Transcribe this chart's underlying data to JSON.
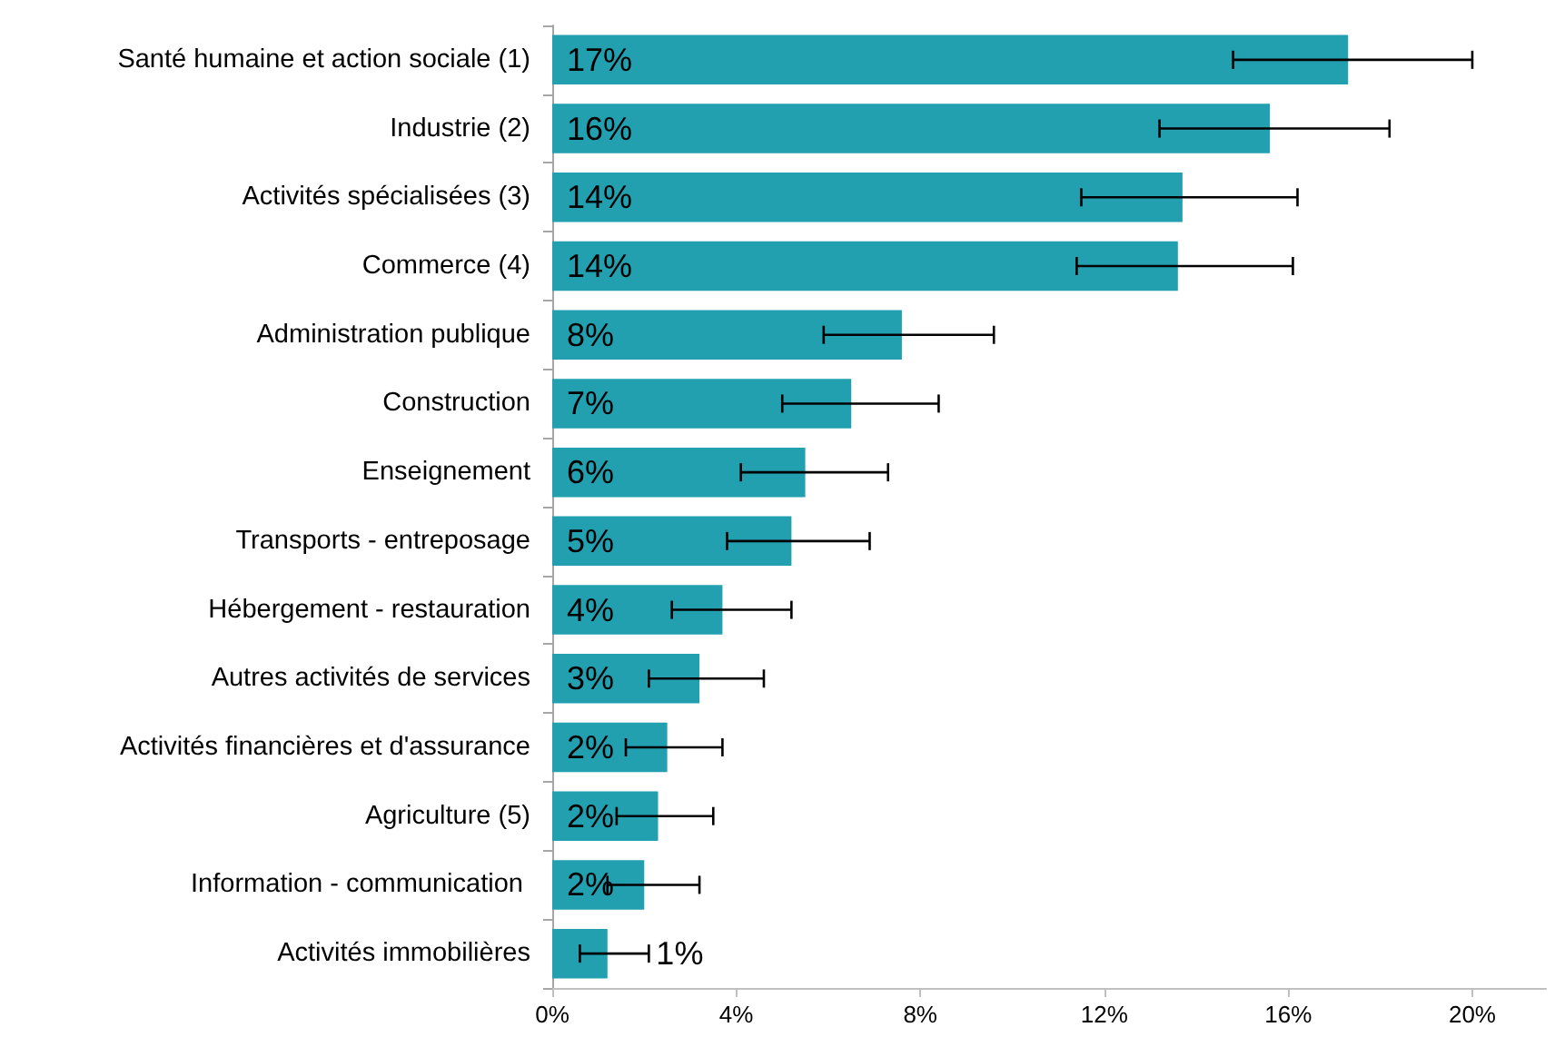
{
  "chart_data": {
    "type": "bar",
    "orientation": "horizontal",
    "color": "#22a0b0",
    "categories": [
      "Santé humaine et action sociale (1)",
      "Industrie (2)",
      "Activités spécialisées (3)",
      "Commerce (4)",
      "Administration publique",
      "Construction",
      "Enseignement",
      "Transports - entreposage",
      "Hébergement - restauration",
      "Autres activités de services",
      "Activités financières et d'assurance",
      "Agriculture (5)",
      "Information - communication ",
      "Activités immobilières"
    ],
    "values": [
      17.3,
      15.6,
      13.7,
      13.6,
      7.6,
      6.5,
      5.5,
      5.2,
      3.7,
      3.2,
      2.5,
      2.3,
      2.0,
      1.2
    ],
    "errors": [
      [
        14.8,
        20.0
      ],
      [
        13.2,
        18.2
      ],
      [
        11.5,
        16.2
      ],
      [
        11.4,
        16.1
      ],
      [
        5.9,
        9.6
      ],
      [
        5.0,
        8.4
      ],
      [
        4.1,
        7.3
      ],
      [
        3.8,
        6.9
      ],
      [
        2.6,
        5.2
      ],
      [
        2.1,
        4.6
      ],
      [
        1.6,
        3.7
      ],
      [
        1.4,
        3.5
      ],
      [
        1.2,
        3.2
      ],
      [
        0.6,
        2.1
      ]
    ],
    "value_labels": [
      "17%",
      "16%",
      "14%",
      "14%",
      "8%",
      "7%",
      "6%",
      "5%",
      "4%",
      "3%",
      "2%",
      "2%",
      "2%",
      "1%"
    ],
    "xlim": [
      0,
      21.6
    ],
    "xticks": [
      {
        "value": 0,
        "label": "0%"
      },
      {
        "value": 4,
        "label": "4%"
      },
      {
        "value": 8,
        "label": "8%"
      },
      {
        "value": 12,
        "label": "12%"
      },
      {
        "value": 16,
        "label": "16%"
      },
      {
        "value": 20,
        "label": "20%"
      }
    ],
    "grid": false
  }
}
